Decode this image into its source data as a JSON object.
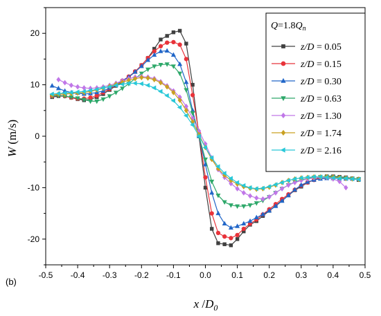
{
  "panel_label": "(b)",
  "chart_data": {
    "type": "line",
    "title": "",
    "xlabel_main": "x",
    "xlabel_sep": " /",
    "xlabel_denom": "D",
    "xlabel_sub": "0",
    "ylabel_main": "W",
    "ylabel_units": " (m/s)",
    "xlim": [
      -0.5,
      0.5
    ],
    "ylim": [
      -25,
      25
    ],
    "xticks": [
      -0.5,
      -0.4,
      -0.3,
      -0.2,
      -0.1,
      0.0,
      0.1,
      0.2,
      0.3,
      0.4,
      0.5
    ],
    "xtick_labels": [
      "-0.5",
      "-0.4",
      "-0.3",
      "-0.2",
      "-0.1",
      "0.0",
      "0.1",
      "0.2",
      "0.3",
      "0.4",
      "0.5"
    ],
    "yticks": [
      -20,
      -10,
      0,
      10,
      20
    ],
    "ytick_labels": [
      "-20",
      "-10",
      "0",
      "10",
      "20"
    ],
    "grid": false,
    "legend_position": "top-right",
    "legend_header": {
      "q": "Q",
      "eq": "=1.8",
      "qn": "Q",
      "sub": "n"
    },
    "series": [
      {
        "name": "z/D = 0.05",
        "label_z": "z",
        "label_d": "/D",
        "label_val": " = 0.05",
        "color": "#404040",
        "marker": "square",
        "x": [
          -0.48,
          -0.46,
          -0.44,
          -0.42,
          -0.4,
          -0.38,
          -0.36,
          -0.34,
          -0.32,
          -0.3,
          -0.28,
          -0.26,
          -0.24,
          -0.22,
          -0.2,
          -0.18,
          -0.16,
          -0.14,
          -0.12,
          -0.1,
          -0.08,
          -0.06,
          -0.04,
          -0.02,
          0.0,
          0.02,
          0.04,
          0.06,
          0.08,
          0.1,
          0.12,
          0.14,
          0.16,
          0.18,
          0.2,
          0.22,
          0.24,
          0.26,
          0.28,
          0.3,
          0.32,
          0.34,
          0.36,
          0.38,
          0.4,
          0.42,
          0.44,
          0.46,
          0.48
        ],
        "y": [
          7.6,
          7.8,
          7.8,
          7.5,
          7.2,
          7.0,
          7.2,
          7.6,
          8.2,
          9.0,
          9.8,
          10.5,
          11.5,
          12.5,
          13.8,
          15.2,
          17.0,
          18.8,
          19.5,
          20.2,
          20.5,
          18.0,
          10.0,
          0.0,
          -10.0,
          -18.0,
          -20.8,
          -21.0,
          -21.2,
          -20.0,
          -18.5,
          -17.2,
          -16.5,
          -15.5,
          -14.5,
          -13.5,
          -12.5,
          -11.5,
          -10.5,
          -9.8,
          -9.0,
          -8.5,
          -8.0,
          -7.8,
          -7.8,
          -7.9,
          -8.0,
          -8.2,
          -8.5
        ]
      },
      {
        "name": "z/D = 0.15",
        "label_z": "z",
        "label_d": "/D",
        "label_val": " = 0.15",
        "color": "#e8333a",
        "marker": "circle",
        "x": [
          -0.48,
          -0.46,
          -0.44,
          -0.42,
          -0.4,
          -0.38,
          -0.36,
          -0.34,
          -0.32,
          -0.3,
          -0.28,
          -0.26,
          -0.24,
          -0.22,
          -0.2,
          -0.18,
          -0.16,
          -0.14,
          -0.12,
          -0.1,
          -0.08,
          -0.06,
          -0.04,
          -0.02,
          0.0,
          0.02,
          0.04,
          0.06,
          0.08,
          0.1,
          0.12,
          0.14,
          0.16,
          0.18,
          0.2,
          0.22,
          0.24,
          0.26,
          0.28,
          0.3,
          0.32,
          0.34,
          0.36,
          0.38,
          0.4,
          0.42,
          0.44,
          0.46,
          0.48
        ],
        "y": [
          7.8,
          8.0,
          7.8,
          7.5,
          7.3,
          7.3,
          7.5,
          7.9,
          8.5,
          9.2,
          10.0,
          10.8,
          11.6,
          12.6,
          13.8,
          15.2,
          16.5,
          17.5,
          18.2,
          18.3,
          17.8,
          15.0,
          8.0,
          0.5,
          -8.0,
          -15.0,
          -18.8,
          -19.5,
          -19.8,
          -19.2,
          -18.0,
          -17.0,
          -16.2,
          -15.2,
          -14.2,
          -13.2,
          -12.2,
          -11.3,
          -10.4,
          -9.6,
          -9.0,
          -8.5,
          -8.1,
          -8.0,
          -7.9,
          -8.0,
          -8.1,
          -8.2,
          -8.3
        ]
      },
      {
        "name": "z/D = 0.30",
        "label_z": "z",
        "label_d": "/D",
        "label_val": " = 0.30",
        "color": "#2166c8",
        "marker": "triangle-up",
        "x": [
          -0.48,
          -0.46,
          -0.44,
          -0.42,
          -0.4,
          -0.38,
          -0.36,
          -0.34,
          -0.32,
          -0.3,
          -0.28,
          -0.26,
          -0.24,
          -0.22,
          -0.2,
          -0.18,
          -0.16,
          -0.14,
          -0.12,
          -0.1,
          -0.08,
          -0.06,
          -0.04,
          -0.02,
          0.0,
          0.02,
          0.04,
          0.06,
          0.08,
          0.1,
          0.12,
          0.14,
          0.16,
          0.18,
          0.2,
          0.22,
          0.24,
          0.26,
          0.28,
          0.3,
          0.32,
          0.34,
          0.36,
          0.38,
          0.4,
          0.42,
          0.44,
          0.46,
          0.48
        ],
        "y": [
          9.8,
          9.3,
          8.8,
          8.5,
          8.4,
          8.2,
          8.3,
          8.5,
          8.8,
          9.4,
          10.0,
          10.8,
          11.5,
          12.5,
          13.6,
          14.8,
          15.8,
          16.5,
          16.6,
          15.8,
          14.0,
          10.5,
          5.0,
          0.0,
          -5.5,
          -11.0,
          -15.0,
          -17.0,
          -17.8,
          -17.5,
          -17.0,
          -16.5,
          -15.8,
          -15.2,
          -14.5,
          -13.6,
          -12.6,
          -11.5,
          -10.4,
          -9.5,
          -8.9,
          -8.5,
          -8.3,
          -8.2,
          -8.2,
          -8.2,
          -8.3,
          -8.3,
          -8.4
        ]
      },
      {
        "name": "z/D = 0.63",
        "label_z": "z",
        "label_d": "/D",
        "label_val": " = 0.63",
        "color": "#2ea86a",
        "marker": "triangle-down",
        "x": [
          -0.48,
          -0.46,
          -0.44,
          -0.42,
          -0.4,
          -0.38,
          -0.36,
          -0.34,
          -0.32,
          -0.3,
          -0.28,
          -0.26,
          -0.24,
          -0.22,
          -0.2,
          -0.18,
          -0.16,
          -0.14,
          -0.12,
          -0.1,
          -0.08,
          -0.06,
          -0.04,
          -0.02,
          0.0,
          0.02,
          0.04,
          0.06,
          0.08,
          0.1,
          0.12,
          0.14,
          0.16,
          0.18,
          0.2,
          0.22,
          0.24,
          0.26,
          0.28,
          0.3,
          0.32,
          0.34,
          0.36,
          0.38,
          0.4,
          0.42,
          0.44,
          0.46,
          0.48
        ],
        "y": [
          7.8,
          7.9,
          7.8,
          7.6,
          7.4,
          7.1,
          6.8,
          6.8,
          7.2,
          7.8,
          8.5,
          9.3,
          10.2,
          11.2,
          12.2,
          13.0,
          13.6,
          13.9,
          14.0,
          13.6,
          12.2,
          9.0,
          4.5,
          0.0,
          -4.5,
          -8.8,
          -11.5,
          -12.8,
          -13.4,
          -13.6,
          -13.6,
          -13.4,
          -13.0,
          -12.5,
          -11.8,
          -11.0,
          -10.2,
          -9.5,
          -8.9,
          -8.5,
          -8.2,
          -8.0,
          -7.9,
          -7.9,
          -7.9,
          -8.0,
          -8.1,
          -8.2,
          -8.3
        ]
      },
      {
        "name": "z/D = 1.30",
        "label_z": "z",
        "label_d": "/D",
        "label_val": " = 1.30",
        "color": "#c077e8",
        "marker": "diamond",
        "x": [
          -0.46,
          -0.44,
          -0.42,
          -0.4,
          -0.38,
          -0.36,
          -0.34,
          -0.32,
          -0.3,
          -0.28,
          -0.26,
          -0.24,
          -0.22,
          -0.2,
          -0.18,
          -0.16,
          -0.14,
          -0.12,
          -0.1,
          -0.08,
          -0.06,
          -0.04,
          -0.02,
          0.0,
          0.02,
          0.04,
          0.06,
          0.08,
          0.1,
          0.12,
          0.14,
          0.16,
          0.18,
          0.2,
          0.22,
          0.24,
          0.26,
          0.28,
          0.3,
          0.32,
          0.34,
          0.36,
          0.38,
          0.4,
          0.42,
          0.44
        ],
        "y": [
          11.0,
          10.4,
          9.9,
          9.6,
          9.4,
          9.3,
          9.4,
          9.6,
          9.9,
          10.3,
          10.8,
          11.2,
          11.5,
          11.6,
          11.5,
          11.2,
          10.6,
          9.8,
          8.8,
          7.6,
          5.8,
          3.5,
          1.0,
          -1.5,
          -4.2,
          -6.5,
          -8.0,
          -9.2,
          -10.2,
          -11.0,
          -11.6,
          -12.0,
          -12.2,
          -11.8,
          -11.0,
          -10.2,
          -9.5,
          -9.0,
          -8.6,
          -8.3,
          -8.1,
          -8.0,
          -8.0,
          -8.3,
          -8.8,
          -10.0
        ]
      },
      {
        "name": "z/D = 1.74",
        "label_z": "z",
        "label_d": "/D",
        "label_val": " = 1.74",
        "color": "#c9a021",
        "marker": "diamond",
        "x": [
          -0.48,
          -0.46,
          -0.44,
          -0.42,
          -0.4,
          -0.38,
          -0.36,
          -0.34,
          -0.32,
          -0.3,
          -0.28,
          -0.26,
          -0.24,
          -0.22,
          -0.2,
          -0.18,
          -0.16,
          -0.14,
          -0.12,
          -0.1,
          -0.08,
          -0.06,
          -0.04,
          -0.02,
          0.0,
          0.02,
          0.04,
          0.06,
          0.08,
          0.1,
          0.12,
          0.14,
          0.16,
          0.18,
          0.2,
          0.22,
          0.24,
          0.26,
          0.28,
          0.3,
          0.32,
          0.34,
          0.36,
          0.38,
          0.4,
          0.42,
          0.44,
          0.46,
          0.48
        ],
        "y": [
          8.0,
          8.2,
          8.2,
          8.3,
          8.4,
          8.5,
          8.7,
          9.0,
          9.3,
          9.7,
          10.1,
          10.5,
          10.9,
          11.2,
          11.4,
          11.3,
          11.0,
          10.4,
          9.6,
          8.5,
          7.0,
          5.0,
          2.8,
          0.3,
          -2.2,
          -4.5,
          -6.3,
          -7.6,
          -8.6,
          -9.3,
          -9.8,
          -10.1,
          -10.3,
          -10.2,
          -9.9,
          -9.5,
          -9.0,
          -8.6,
          -8.3,
          -8.1,
          -8.0,
          -7.9,
          -7.9,
          -7.9,
          -8.0,
          -8.1,
          -8.2,
          -8.3,
          -8.4
        ]
      },
      {
        "name": "z/D = 2.16",
        "label_z": "z",
        "label_d": "/D",
        "label_val": " = 2.16",
        "color": "#28c8d8",
        "marker": "triangle-left",
        "x": [
          -0.48,
          -0.46,
          -0.44,
          -0.42,
          -0.4,
          -0.38,
          -0.36,
          -0.34,
          -0.32,
          -0.3,
          -0.28,
          -0.26,
          -0.24,
          -0.22,
          -0.2,
          -0.18,
          -0.16,
          -0.14,
          -0.12,
          -0.1,
          -0.08,
          -0.06,
          -0.04,
          -0.02,
          0.0,
          0.02,
          0.04,
          0.06,
          0.08,
          0.1,
          0.12,
          0.14,
          0.16,
          0.18,
          0.2,
          0.22,
          0.24,
          0.26,
          0.28,
          0.3,
          0.32,
          0.34,
          0.36,
          0.38,
          0.4,
          0.42,
          0.44,
          0.46,
          0.48
        ],
        "y": [
          8.2,
          8.3,
          8.4,
          8.5,
          8.6,
          8.7,
          8.9,
          9.1,
          9.4,
          9.6,
          9.9,
          10.1,
          10.3,
          10.3,
          10.2,
          9.9,
          9.4,
          8.7,
          7.9,
          6.9,
          5.6,
          4.0,
          2.2,
          0.0,
          -2.2,
          -4.2,
          -5.9,
          -7.2,
          -8.2,
          -9.0,
          -9.6,
          -10.0,
          -10.2,
          -10.1,
          -9.8,
          -9.4,
          -9.0,
          -8.6,
          -8.3,
          -8.1,
          -8.0,
          -7.9,
          -7.9,
          -8.0,
          -8.1,
          -8.2,
          -8.2,
          -8.3,
          -8.4
        ]
      }
    ]
  }
}
